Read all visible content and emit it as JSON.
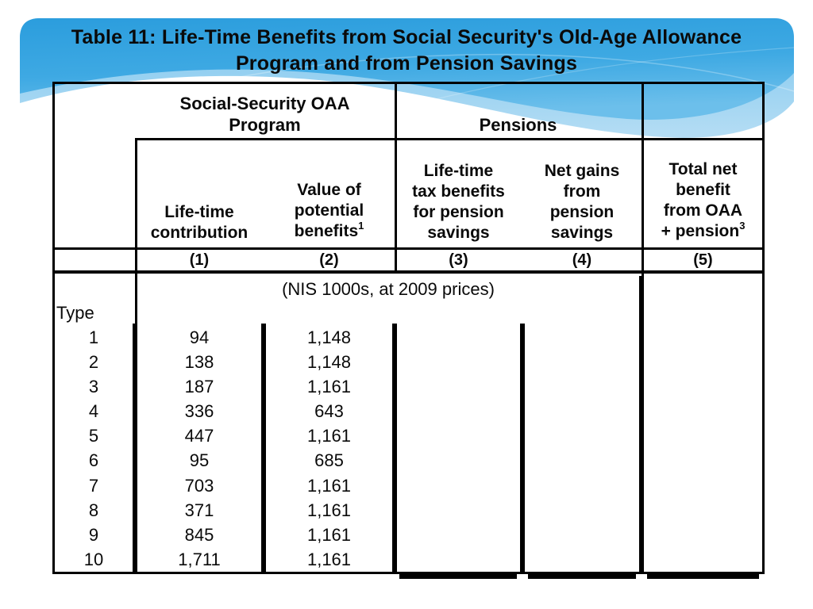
{
  "title": {
    "lines": [
      "Table 11: Life-Time Benefits from Social Security's Old-Age Allowance",
      "Program and from Pension Savings"
    ]
  },
  "colors": {
    "banner_blue_top": "#2b9ddd",
    "banner_blue_mid": "#3ea9e3",
    "banner_blue_bottom": "#6cbfeb",
    "banner_blue_light": "#a9d7f2",
    "table_border": "#000000",
    "text": "#0a0a0a"
  },
  "table": {
    "group_headers": {
      "oaa_program": {
        "lines": [
          "Social-Security OAA",
          "Program"
        ]
      },
      "pensions": {
        "lines": [
          "Pensions"
        ]
      }
    },
    "column_headers": {
      "col1": {
        "lines": [
          "Life-time",
          "contribution"
        ],
        "superscript": ""
      },
      "col2": {
        "lines": [
          "Value of",
          "potential",
          "benefits"
        ],
        "superscript": "1"
      },
      "col3": {
        "lines": [
          "Life-time",
          "tax benefits",
          "for pension",
          "savings"
        ],
        "superscript": ""
      },
      "col4": {
        "lines": [
          "Net gains",
          "from",
          "pension",
          "savings"
        ],
        "superscript": ""
      },
      "col5": {
        "lines": [
          "Total net",
          "benefit",
          "from OAA",
          "+ pension"
        ],
        "superscript": "3"
      }
    },
    "column_numbers": [
      "(1)",
      "(2)",
      "(3)",
      "(4)",
      "(5)"
    ],
    "units_note": "(NIS 1000s, at 2009 prices)",
    "row_label_header": "Type",
    "rows": [
      {
        "type": "1",
        "lifetime_contribution": "94",
        "value_of_potential_benefits": "1,148"
      },
      {
        "type": "2",
        "lifetime_contribution": "138",
        "value_of_potential_benefits": "1,148"
      },
      {
        "type": "3",
        "lifetime_contribution": "187",
        "value_of_potential_benefits": "1,161"
      },
      {
        "type": "4",
        "lifetime_contribution": "336",
        "value_of_potential_benefits": "643"
      },
      {
        "type": "5",
        "lifetime_contribution": "447",
        "value_of_potential_benefits": "1,161"
      },
      {
        "type": "6",
        "lifetime_contribution": "95",
        "value_of_potential_benefits": "685"
      },
      {
        "type": "7",
        "lifetime_contribution": "703",
        "value_of_potential_benefits": "1,161"
      },
      {
        "type": "8",
        "lifetime_contribution": "371",
        "value_of_potential_benefits": "1,161"
      },
      {
        "type": "9",
        "lifetime_contribution": "845",
        "value_of_potential_benefits": "1,161"
      },
      {
        "type": "10",
        "lifetime_contribution": "1,711",
        "value_of_potential_benefits": "1,161"
      }
    ]
  }
}
